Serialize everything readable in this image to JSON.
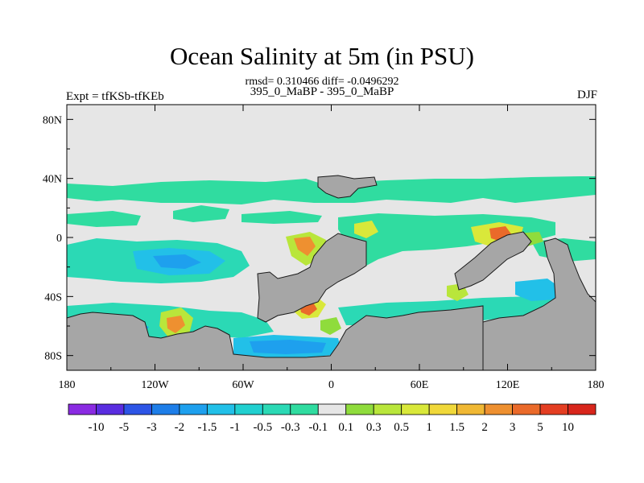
{
  "header": {
    "title": "Ocean Salinity at 5m (in PSU)",
    "stats": "rmsd= 0.310466 diff= -0.0496292",
    "center_string": "395_0_MaBP - 395_0_MaBP",
    "left_string": "Expt = tfKSb-tfKEb",
    "right_string": "DJF"
  },
  "chart_data": {
    "type": "heatmap",
    "title": "Ocean Salinity at 5m (in PSU)",
    "xlabel": "",
    "ylabel": "",
    "xlim": [
      -180,
      180
    ],
    "ylim": [
      -90,
      90
    ],
    "x_ticks": [
      {
        "value": -180,
        "label": "180"
      },
      {
        "value": -120,
        "label": "120W"
      },
      {
        "value": -60,
        "label": "60W"
      },
      {
        "value": 0,
        "label": "0"
      },
      {
        "value": 60,
        "label": "60E"
      },
      {
        "value": 120,
        "label": "120E"
      },
      {
        "value": 180,
        "label": "180"
      }
    ],
    "y_ticks": [
      {
        "value": 80,
        "label": "80N"
      },
      {
        "value": 40,
        "label": "40N"
      },
      {
        "value": 0,
        "label": "0"
      },
      {
        "value": -40,
        "label": "40S"
      },
      {
        "value": -80,
        "label": "80S"
      }
    ],
    "colorbar": {
      "labels": [
        "-10",
        "-5",
        "-3",
        "-2",
        "-1.5",
        "-1",
        "-0.5",
        "-0.3",
        "-0.1",
        "0.1",
        "0.3",
        "0.5",
        "1",
        "1.5",
        "2",
        "3",
        "5",
        "10"
      ],
      "colors": [
        "#8a2be2",
        "#5a2de0",
        "#2d55e6",
        "#1e7ee8",
        "#1ea0ee",
        "#22c0e8",
        "#21d0d0",
        "#2bd9b5",
        "#30dca0",
        "#e6e6e6",
        "#8fdc3c",
        "#b9e63b",
        "#d9e83a",
        "#f0d83a",
        "#f0b834",
        "#ee9030",
        "#ea6a2a",
        "#e43e22",
        "#d8261c"
      ]
    },
    "land_color": "#a6a6a6",
    "features": [
      {
        "name": "equatorial-atlantic-indian-positive",
        "lon": 5,
        "lat": 0,
        "level": "0.3 to 3"
      },
      {
        "name": "south-pacific-fresh",
        "lon": -140,
        "lat": -20,
        "level": "-0.5 to -1.5"
      },
      {
        "name": "southern-ocean-fresh",
        "lon": -40,
        "lat": -78,
        "level": "-1 to -2"
      },
      {
        "name": "north-temperate-fresh-band",
        "lon": 0,
        "lat": 35,
        "level": "-0.1 to -0.3"
      },
      {
        "name": "indian-ocean-salty-spot",
        "lon": 110,
        "lat": 2,
        "level": "2 to 5"
      }
    ]
  }
}
